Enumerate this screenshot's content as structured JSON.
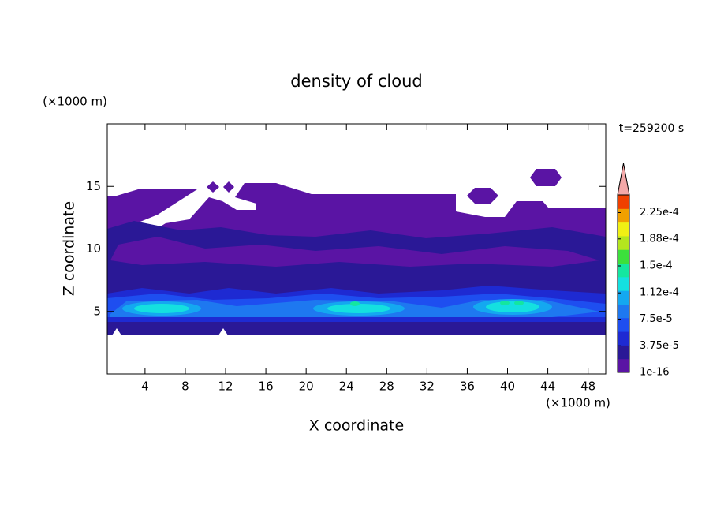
{
  "chart_data": {
    "type": "contour",
    "title": "density of cloud",
    "xlabel": "X coordinate",
    "ylabel": "Z coordinate",
    "xunit": "(×1000 m)",
    "yunit": "(×1000 m)",
    "annotation": "t=259200 s",
    "xlim": [
      0.25,
      49.75
    ],
    "ylim": [
      0,
      20
    ],
    "xticks": [
      4,
      8,
      12,
      16,
      20,
      24,
      28,
      32,
      36,
      40,
      44,
      48
    ],
    "yticks": [
      5,
      10,
      15
    ],
    "colorbar": {
      "clim": [
        1e-16,
        0.00025
      ],
      "ticks": [
        {
          "value": 1e-16,
          "label": "1e-16"
        },
        {
          "value": 3.75e-05,
          "label": "3.75e-5"
        },
        {
          "value": 7.5e-05,
          "label": "7.5e-5"
        },
        {
          "value": 0.000112,
          "label": "1.12e-4"
        },
        {
          "value": 0.00015,
          "label": "1.5e-4"
        },
        {
          "value": 0.000188,
          "label": "1.88e-4"
        },
        {
          "value": 0.000225,
          "label": "2.25e-4"
        }
      ],
      "colors": [
        "#5a14a4",
        "#2a1896",
        "#1e2ad2",
        "#1e4ef0",
        "#1e78f0",
        "#14a8f0",
        "#14e0e0",
        "#14e6a0",
        "#3ce03c",
        "#b4e61e",
        "#f0f014",
        "#f0a000",
        "#f04000"
      ],
      "over_color": "#f4a8a8"
    }
  }
}
